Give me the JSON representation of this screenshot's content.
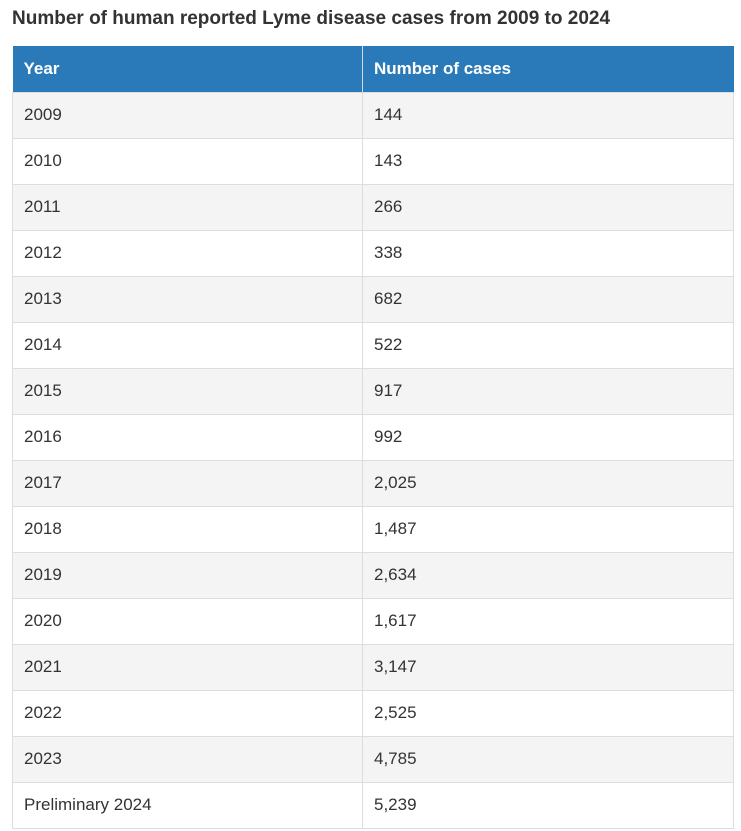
{
  "page": {
    "title": "Number of human reported Lyme disease cases from 2009 to 2024"
  },
  "table": {
    "columns": {
      "year": "Year",
      "cases": "Number of cases"
    },
    "rows": [
      {
        "year": "2009",
        "cases": "144"
      },
      {
        "year": "2010",
        "cases": "143"
      },
      {
        "year": "2011",
        "cases": "266"
      },
      {
        "year": "2012",
        "cases": "338"
      },
      {
        "year": "2013",
        "cases": "682"
      },
      {
        "year": "2014",
        "cases": "522"
      },
      {
        "year": "2015",
        "cases": "917"
      },
      {
        "year": "2016",
        "cases": "992"
      },
      {
        "year": "2017",
        "cases": "2,025"
      },
      {
        "year": "2018",
        "cases": "1,487"
      },
      {
        "year": "2019",
        "cases": "2,634"
      },
      {
        "year": "2020",
        "cases": "1,617"
      },
      {
        "year": "2021",
        "cases": "3,147"
      },
      {
        "year": "2022",
        "cases": "2,525"
      },
      {
        "year": "2023",
        "cases": "4,785"
      },
      {
        "year": "Preliminary 2024",
        "cases": "5,239"
      }
    ]
  },
  "chart_data": {
    "type": "table",
    "title": "Number of human reported Lyme disease cases from 2009 to 2024",
    "columns": [
      "Year",
      "Number of cases"
    ],
    "categories": [
      "2009",
      "2010",
      "2011",
      "2012",
      "2013",
      "2014",
      "2015",
      "2016",
      "2017",
      "2018",
      "2019",
      "2020",
      "2021",
      "2022",
      "2023",
      "Preliminary 2024"
    ],
    "values": [
      144,
      143,
      266,
      338,
      682,
      522,
      917,
      992,
      2025,
      1487,
      2634,
      1617,
      3147,
      2525,
      4785,
      5239
    ]
  },
  "colors": {
    "header_bg": "#2a7ab9",
    "header_text": "#ffffff",
    "row_bg": "#ffffff",
    "row_alt_bg": "#f4f4f4",
    "border": "#dddddd",
    "text": "#333333"
  }
}
